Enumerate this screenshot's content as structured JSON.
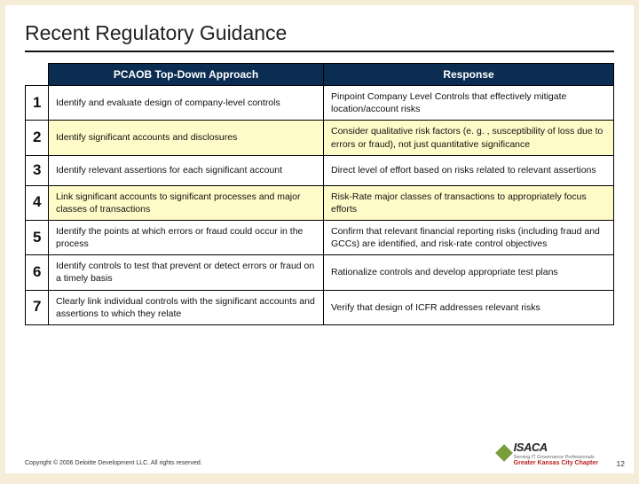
{
  "title": "Recent Regulatory Guidance",
  "headers": {
    "left": "PCAOB Top-Down Approach",
    "right": "Response"
  },
  "rows": [
    {
      "n": "1",
      "hl": false,
      "pcaob": "Identify and evaluate design of company-level controls",
      "resp": "Pinpoint Company Level Controls that effectively mitigate location/account risks"
    },
    {
      "n": "2",
      "hl": true,
      "pcaob": "Identify significant accounts and disclosures",
      "resp": "Consider qualitative risk factors (e. g. , susceptibility of loss due to errors or fraud), not just quantitative significance"
    },
    {
      "n": "3",
      "hl": false,
      "pcaob": "Identify relevant assertions for each significant account",
      "resp": "Direct level of effort based on risks related to relevant assertions"
    },
    {
      "n": "4",
      "hl": true,
      "pcaob": "Link significant accounts to significant processes and major classes of transactions",
      "resp": "Risk-Rate major classes of transactions to appropriately focus efforts"
    },
    {
      "n": "5",
      "hl": false,
      "pcaob": "Identify the points at which errors or fraud could occur in the process",
      "resp": "Confirm that relevant financial reporting risks (including fraud and GCCs) are identified, and risk-rate control objectives"
    },
    {
      "n": "6",
      "hl": false,
      "pcaob": "Identify controls to test that prevent or detect errors or fraud on a timely basis",
      "resp": "Rationalize controls and develop appropriate test plans"
    },
    {
      "n": "7",
      "hl": false,
      "pcaob": "Clearly link individual controls with the significant accounts and assertions to which they relate",
      "resp": "Verify that design of ICFR addresses relevant risks"
    }
  ],
  "copyright": "Copyright © 2006 Deloitte Development LLC. All rights reserved.",
  "pagenum": "12",
  "logo": {
    "name": "ISACA",
    "sub": "Serving IT Governance Professionals",
    "chapter": "Greater Kansas City Chapter"
  },
  "colors": {
    "slide_bg": "#ffffff",
    "page_bg": "#f5edd8",
    "header_bg": "#0b2d52",
    "header_fg": "#ffffff",
    "highlight_bg": "#fffbc8",
    "border": "#000000",
    "logo_green": "#7a9e3e",
    "logo_red": "#b22222"
  }
}
